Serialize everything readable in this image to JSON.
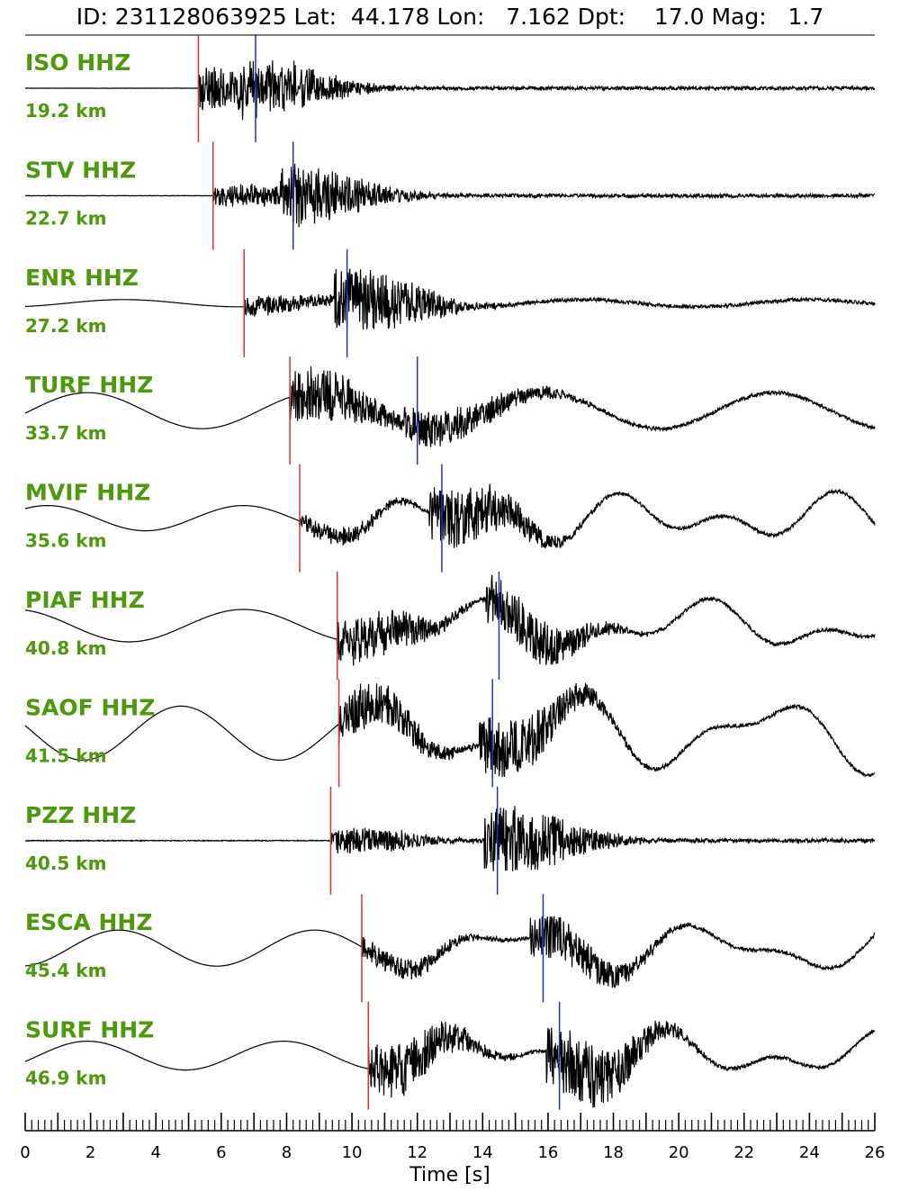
{
  "header": {
    "text": "ID: 231128063925 Lat:  44.178 Lon:   7.162 Dpt:    17.0 Mag:   1.7"
  },
  "chart_data": {
    "type": "line",
    "title": "ID: 231128063925 Lat:  44.178 Lon:   7.162 Dpt:    17.0 Mag:   1.7",
    "xlabel": "Time [s]",
    "xlim": [
      0,
      26
    ],
    "xticks": [
      "0",
      "2",
      "4",
      "6",
      "8",
      "10",
      "12",
      "14",
      "16",
      "18",
      "20",
      "22",
      "24",
      "26"
    ],
    "minor_tick_step": 0.2,
    "colors": {
      "waveform": "#000000",
      "p_pick": "#e03030",
      "s_pick": "#2030d0",
      "station_label": "#4a9a0a"
    },
    "series": [
      {
        "station": "ISO HHZ",
        "distance": "19.2 km",
        "p_pick": 5.3,
        "s_pick": 7.05
      },
      {
        "station": "STV HHZ",
        "distance": "22.7 km",
        "p_pick": 5.75,
        "s_pick": 8.2
      },
      {
        "station": "ENR HHZ",
        "distance": "27.2 km",
        "p_pick": 6.7,
        "s_pick": 9.85
      },
      {
        "station": "TURF HHZ",
        "distance": "33.7 km",
        "p_pick": 8.1,
        "s_pick": 12.0
      },
      {
        "station": "MVIF HHZ",
        "distance": "35.6 km",
        "p_pick": 8.4,
        "s_pick": 12.75
      },
      {
        "station": "PIAF HHZ",
        "distance": "40.8 km",
        "p_pick": 9.55,
        "s_pick": 14.5
      },
      {
        "station": "SAOF HHZ",
        "distance": "41.5 km",
        "p_pick": 9.6,
        "s_pick": 14.3
      },
      {
        "station": "PZZ HHZ",
        "distance": "40.5 km",
        "p_pick": 9.35,
        "s_pick": 14.45
      },
      {
        "station": "ESCA HHZ",
        "distance": "45.4 km",
        "p_pick": 10.3,
        "s_pick": 15.85
      },
      {
        "station": "SURF HHZ",
        "distance": "46.9 km",
        "p_pick": 10.5,
        "s_pick": 16.35
      }
    ]
  }
}
